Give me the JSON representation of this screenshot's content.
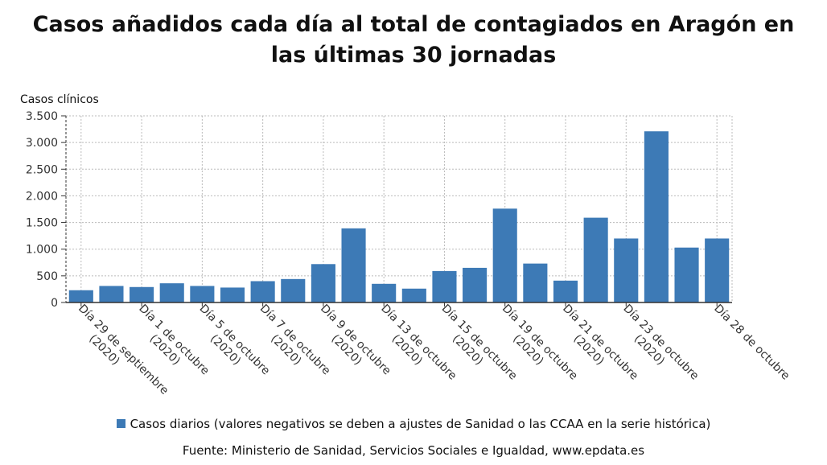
{
  "chart_data": {
    "type": "bar",
    "title": "Casos añadidos cada día al total de contagiados en Aragón en las últimas 30 jornadas",
    "ylabel": "Casos clínicos",
    "xlabel": "",
    "ylim": [
      0,
      3500
    ],
    "yticks": [
      0,
      500,
      1000,
      1500,
      2000,
      2500,
      3000,
      3500
    ],
    "ytick_labels": [
      "0",
      "500",
      "1.000",
      "1.500",
      "2.000",
      "2.500",
      "3.000",
      "3.500"
    ],
    "grid": true,
    "bar_color": "#3d7ab6",
    "values": [
      230,
      310,
      290,
      360,
      310,
      280,
      400,
      440,
      720,
      1390,
      350,
      260,
      590,
      650,
      1760,
      730,
      410,
      1590,
      1200,
      3210,
      1030,
      1200
    ],
    "tick_labels": [
      {
        "bar_index": 0,
        "lines": [
          "Día 29 de septiembre",
          "(2020)"
        ]
      },
      {
        "bar_index": 2,
        "lines": [
          "Día 1 de octubre",
          "(2020)"
        ]
      },
      {
        "bar_index": 4,
        "lines": [
          "Día 5 de octubre",
          "(2020)"
        ]
      },
      {
        "bar_index": 6,
        "lines": [
          "Día 7 de octubre",
          "(2020)"
        ]
      },
      {
        "bar_index": 8,
        "lines": [
          "Día 9 de octubre",
          "(2020)"
        ]
      },
      {
        "bar_index": 10,
        "lines": [
          "Día 13 de octubre",
          "(2020)"
        ]
      },
      {
        "bar_index": 12,
        "lines": [
          "Día 15 de octubre",
          "(2020)"
        ]
      },
      {
        "bar_index": 14,
        "lines": [
          "Día 19 de octubre",
          "(2020)"
        ]
      },
      {
        "bar_index": 16,
        "lines": [
          "Día 21 de octubre",
          "(2020)"
        ]
      },
      {
        "bar_index": 18,
        "lines": [
          "Día 23 de octubre",
          "(2020)"
        ]
      },
      {
        "bar_index": 21,
        "lines": [
          "Día 28 de octubre"
        ]
      }
    ],
    "series": [
      {
        "name": "Casos diarios (valores negativos se deben a ajustes de Sanidad o las CCAA en la serie histórica)"
      }
    ]
  },
  "legend": {
    "label": "Casos diarios (valores negativos se deben a ajustes de Sanidad o las CCAA en la serie histórica)"
  },
  "source": "Fuente: Ministerio de Sanidad, Servicios Sociales e Igualdad, www.epdata.es"
}
